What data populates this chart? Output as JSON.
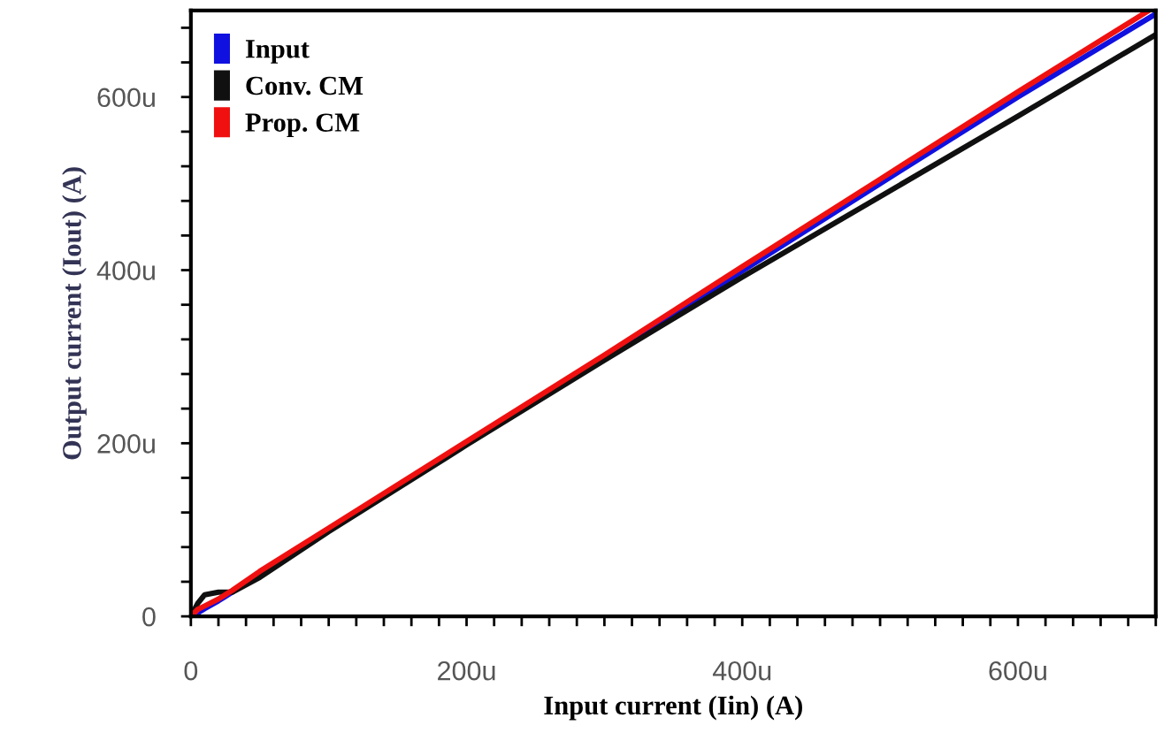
{
  "chart_data": {
    "type": "line",
    "xlabel": "Input current (Iin) (A)",
    "ylabel": "Output current (Iout) (A)",
    "xlim": [
      0,
      700
    ],
    "ylim": [
      0,
      700
    ],
    "xticks": [
      {
        "value": 0,
        "label": "0"
      },
      {
        "value": 20,
        "label": null
      },
      {
        "value": 40,
        "label": null
      },
      {
        "value": 60,
        "label": null
      },
      {
        "value": 80,
        "label": null
      },
      {
        "value": 100,
        "label": null
      },
      {
        "value": 120,
        "label": null
      },
      {
        "value": 140,
        "label": null
      },
      {
        "value": 160,
        "label": null
      },
      {
        "value": 180,
        "label": null
      },
      {
        "value": 200,
        "label": "200u"
      },
      {
        "value": 220,
        "label": null
      },
      {
        "value": 240,
        "label": null
      },
      {
        "value": 260,
        "label": null
      },
      {
        "value": 280,
        "label": null
      },
      {
        "value": 300,
        "label": null
      },
      {
        "value": 320,
        "label": null
      },
      {
        "value": 340,
        "label": null
      },
      {
        "value": 360,
        "label": null
      },
      {
        "value": 380,
        "label": null
      },
      {
        "value": 400,
        "label": "400u"
      },
      {
        "value": 420,
        "label": null
      },
      {
        "value": 440,
        "label": null
      },
      {
        "value": 460,
        "label": null
      },
      {
        "value": 480,
        "label": null
      },
      {
        "value": 500,
        "label": null
      },
      {
        "value": 520,
        "label": null
      },
      {
        "value": 540,
        "label": null
      },
      {
        "value": 560,
        "label": null
      },
      {
        "value": 580,
        "label": null
      },
      {
        "value": 600,
        "label": "600u"
      },
      {
        "value": 620,
        "label": null
      },
      {
        "value": 640,
        "label": null
      },
      {
        "value": 660,
        "label": null
      },
      {
        "value": 680,
        "label": null
      },
      {
        "value": 700,
        "label": null
      }
    ],
    "yticks": [
      {
        "value": 0,
        "label": "0"
      },
      {
        "value": 40,
        "label": null
      },
      {
        "value": 80,
        "label": null
      },
      {
        "value": 120,
        "label": null
      },
      {
        "value": 160,
        "label": null
      },
      {
        "value": 200,
        "label": "200u"
      },
      {
        "value": 240,
        "label": null
      },
      {
        "value": 280,
        "label": null
      },
      {
        "value": 320,
        "label": null
      },
      {
        "value": 360,
        "label": null
      },
      {
        "value": 400,
        "label": "400u"
      },
      {
        "value": 440,
        "label": null
      },
      {
        "value": 480,
        "label": null
      },
      {
        "value": 520,
        "label": null
      },
      {
        "value": 560,
        "label": null
      },
      {
        "value": 600,
        "label": "600u"
      },
      {
        "value": 640,
        "label": null
      },
      {
        "value": 680,
        "label": null
      }
    ],
    "grid": false,
    "legend": "top left",
    "marker": "none",
    "line_style": "solid",
    "series": [
      {
        "name": "Input",
        "color": "#1010e0",
        "x": [
          0,
          5,
          10,
          20,
          30,
          100,
          200,
          300,
          400,
          500,
          600,
          700
        ],
        "values": [
          0,
          4,
          9,
          18,
          28,
          99,
          199,
          299,
          399,
          500,
          600,
          696
        ]
      },
      {
        "name": "Conv. CM",
        "color": "#101010",
        "x": [
          0,
          5,
          10,
          20,
          30,
          50,
          100,
          200,
          300,
          400,
          500,
          600,
          700
        ],
        "values": [
          0,
          15,
          25,
          28,
          28,
          45,
          98,
          198,
          296,
          392,
          485,
          578,
          672
        ]
      },
      {
        "name": "Prop. CM",
        "color": "#f01010",
        "x": [
          0,
          5,
          10,
          20,
          30,
          50,
          100,
          200,
          300,
          400,
          500,
          600,
          695
        ],
        "values": [
          0,
          8,
          12,
          20,
          30,
          52,
          102,
          202,
          302,
          404,
          505,
          606,
          700
        ]
      }
    ]
  }
}
